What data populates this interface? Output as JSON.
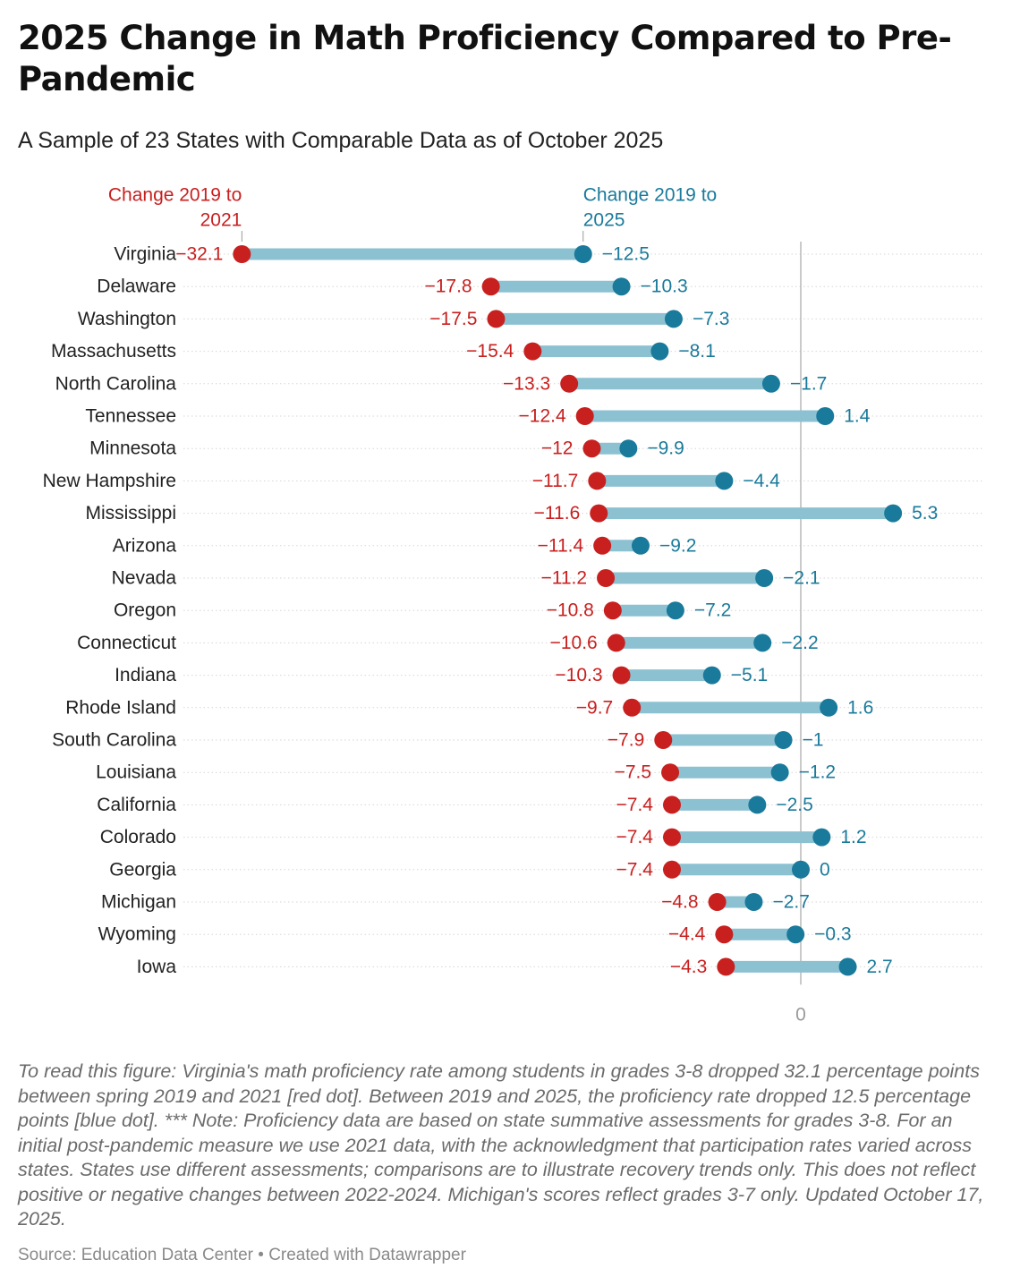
{
  "title": "2025 Change in Math Proficiency Compared to Pre-Pandemic",
  "subtitle": "A Sample of 23 States with Comparable Data as of October 2025",
  "colors": {
    "red": "#c8201f",
    "blue": "#1a7a9b",
    "bar": "#8cc1d2",
    "red_text": "#c8201f",
    "blue_text": "#1a7a9b",
    "zero_line": "#bdbdbd",
    "grid": "#d6d6d6"
  },
  "chart_data": {
    "type": "dumbbell",
    "x_axis_ticks": [
      "0"
    ],
    "xlim": [
      -32.1,
      5.3
    ],
    "legend": {
      "series1_label_lines": [
        "Change 2019 to",
        "2021"
      ],
      "series2_label_lines": [
        "Change 2019 to",
        "2025"
      ],
      "placement": "top, above first row"
    },
    "series": [
      {
        "name": "Change 2019 to 2021",
        "color": "#c8201f"
      },
      {
        "name": "Change 2019 to 2025",
        "color": "#1a7a9b"
      }
    ],
    "rows": [
      {
        "state": "Virginia",
        "v2021": -32.1,
        "v2025": -12.5,
        "l2021": "−32.1",
        "l2025": "−12.5"
      },
      {
        "state": "Delaware",
        "v2021": -17.8,
        "v2025": -10.3,
        "l2021": "−17.8",
        "l2025": "−10.3"
      },
      {
        "state": "Washington",
        "v2021": -17.5,
        "v2025": -7.3,
        "l2021": "−17.5",
        "l2025": "−7.3"
      },
      {
        "state": "Massachusetts",
        "v2021": -15.4,
        "v2025": -8.1,
        "l2021": "−15.4",
        "l2025": "−8.1"
      },
      {
        "state": "North Carolina",
        "v2021": -13.3,
        "v2025": -1.7,
        "l2021": "−13.3",
        "l2025": "−1.7"
      },
      {
        "state": "Tennessee",
        "v2021": -12.4,
        "v2025": 1.4,
        "l2021": "−12.4",
        "l2025": "1.4"
      },
      {
        "state": "Minnesota",
        "v2021": -12,
        "v2025": -9.9,
        "l2021": "−12",
        "l2025": "−9.9"
      },
      {
        "state": "New Hampshire",
        "v2021": -11.7,
        "v2025": -4.4,
        "l2021": "−11.7",
        "l2025": "−4.4"
      },
      {
        "state": "Mississippi",
        "v2021": -11.6,
        "v2025": 5.3,
        "l2021": "−11.6",
        "l2025": "5.3"
      },
      {
        "state": "Arizona",
        "v2021": -11.4,
        "v2025": -9.2,
        "l2021": "−11.4",
        "l2025": "−9.2"
      },
      {
        "state": "Nevada",
        "v2021": -11.2,
        "v2025": -2.1,
        "l2021": "−11.2",
        "l2025": "−2.1"
      },
      {
        "state": "Oregon",
        "v2021": -10.8,
        "v2025": -7.2,
        "l2021": "−10.8",
        "l2025": "−7.2"
      },
      {
        "state": "Connecticut",
        "v2021": -10.6,
        "v2025": -2.2,
        "l2021": "−10.6",
        "l2025": "−2.2"
      },
      {
        "state": "Indiana",
        "v2021": -10.3,
        "v2025": -5.1,
        "l2021": "−10.3",
        "l2025": "−5.1"
      },
      {
        "state": "Rhode Island",
        "v2021": -9.7,
        "v2025": 1.6,
        "l2021": "−9.7",
        "l2025": "1.6"
      },
      {
        "state": "South Carolina",
        "v2021": -7.9,
        "v2025": -1,
        "l2021": "−7.9",
        "l2025": "−1"
      },
      {
        "state": "Louisiana",
        "v2021": -7.5,
        "v2025": -1.2,
        "l2021": "−7.5",
        "l2025": "−1.2"
      },
      {
        "state": "California",
        "v2021": -7.4,
        "v2025": -2.5,
        "l2021": "−7.4",
        "l2025": "−2.5"
      },
      {
        "state": "Colorado",
        "v2021": -7.4,
        "v2025": 1.2,
        "l2021": "−7.4",
        "l2025": "1.2"
      },
      {
        "state": "Georgia",
        "v2021": -7.4,
        "v2025": 0,
        "l2021": "−7.4",
        "l2025": "0"
      },
      {
        "state": "Michigan",
        "v2021": -4.8,
        "v2025": -2.7,
        "l2021": "−4.8",
        "l2025": "−2.7"
      },
      {
        "state": "Wyoming",
        "v2021": -4.4,
        "v2025": -0.3,
        "l2021": "−4.4",
        "l2025": "−0.3"
      },
      {
        "state": "Iowa",
        "v2021": -4.3,
        "v2025": 2.7,
        "l2021": "−4.3",
        "l2025": "2.7"
      }
    ]
  },
  "notes": "To read this figure: Virginia's math proficiency rate among students in grades 3-8 dropped 32.1 percentage points between spring 2019 and 2021 [red dot]. Between 2019 and 2025, the proficiency rate dropped 12.5 percentage points [blue dot]. *** Note: Proficiency data are based on state summative assessments for grades 3-8. For an initial post-pandemic measure we use 2021 data, with the acknowledgment that participation rates varied across states. States use different assessments; comparisons are to illustrate recovery trends only. This does not reflect positive or negative changes between 2022-2024. Michigan's scores reflect grades 3-7 only. Updated October 17, 2025.",
  "source": "Source: Education Data Center • Created with Datawrapper"
}
